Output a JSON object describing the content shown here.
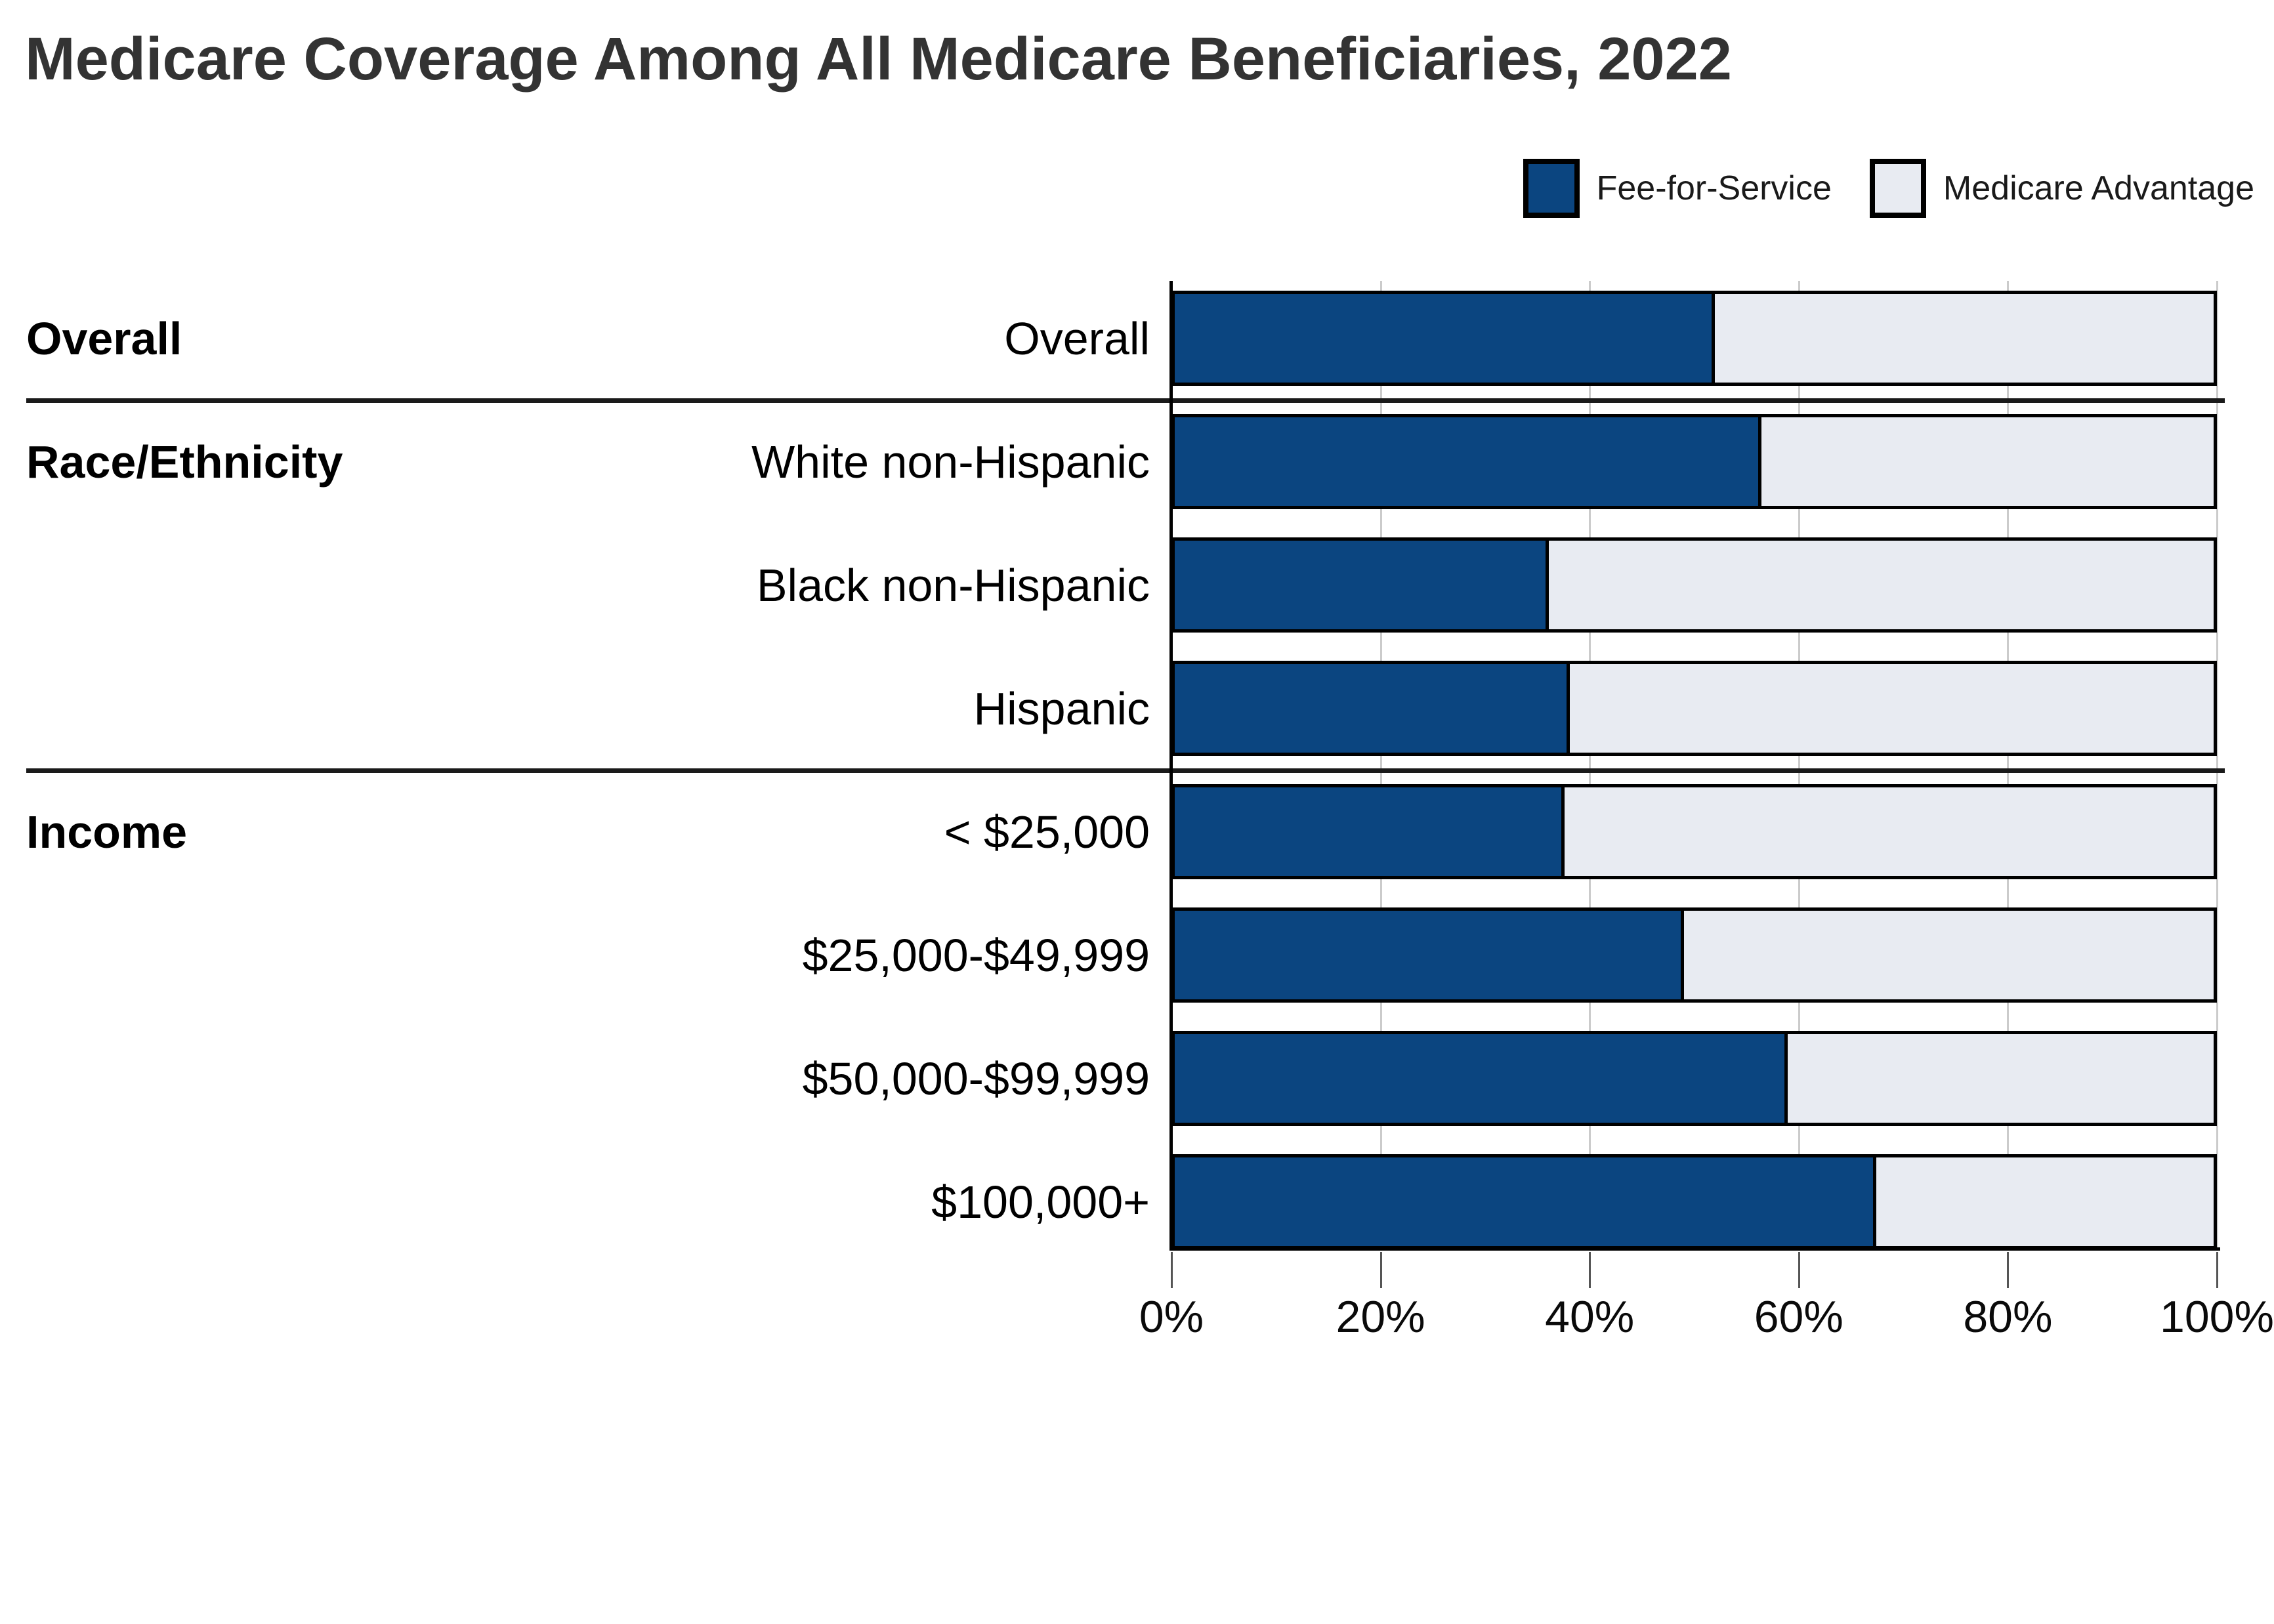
{
  "title": "Medicare Coverage Among All Medicare Beneficiaries, 2022",
  "legend": [
    {
      "label": "Fee-for-Service",
      "color": "#0B4580",
      "swatch": "dark-blue-square"
    },
    {
      "label": "Medicare Advantage",
      "color": "#E8EBF2",
      "swatch": "light-gray-square"
    }
  ],
  "colors": {
    "fee_for_service": "#0B4580",
    "medicare_advantage": "#E8EBF2",
    "bar_border": "#000000",
    "gridline": "#cbcbcb",
    "divider": "#1a1a1a",
    "title_text": "#333333",
    "label_text": "#000000"
  },
  "chart_data": {
    "type": "bar",
    "orientation": "horizontal",
    "stacked": true,
    "title": "Medicare Coverage Among All Medicare Beneficiaries, 2022",
    "xlabel": "",
    "ylabel": "",
    "value_unit": "percent",
    "xlim": [
      0,
      100
    ],
    "x_ticks": [
      0,
      20,
      40,
      60,
      80,
      100
    ],
    "x_tick_labels": [
      "0%",
      "20%",
      "40%",
      "60%",
      "80%",
      "100%"
    ],
    "grid": "vertical",
    "legend_position": "top-right",
    "series_names": [
      "Fee-for-Service",
      "Medicare Advantage"
    ],
    "categories": [
      "Overall",
      "White non-Hispanic",
      "Black non-Hispanic",
      "Hispanic",
      "< $25,000",
      "$25,000-$49,999",
      "$50,000-$99,999",
      "$100,000+"
    ],
    "series": [
      {
        "name": "Fee-for-Service",
        "color": "#0B4580",
        "values": [
          52,
          56.5,
          36,
          38,
          37.5,
          49,
          59,
          67.5
        ]
      },
      {
        "name": "Medicare Advantage",
        "color": "#E8EBF2",
        "values": [
          48,
          43.5,
          64,
          62,
          62.5,
          51,
          41,
          32.5
        ]
      }
    ],
    "groups": [
      {
        "label": "Overall",
        "rows": [
          {
            "category": "Overall",
            "fee_for_service": 52,
            "medicare_advantage": 48
          }
        ]
      },
      {
        "label": "Race/Ethnicity",
        "rows": [
          {
            "category": "White non-Hispanic",
            "fee_for_service": 56.5,
            "medicare_advantage": 43.5
          },
          {
            "category": "Black non-Hispanic",
            "fee_for_service": 36,
            "medicare_advantage": 64
          },
          {
            "category": "Hispanic",
            "fee_for_service": 38,
            "medicare_advantage": 62
          }
        ]
      },
      {
        "label": "Income",
        "rows": [
          {
            "category": "< $25,000",
            "fee_for_service": 37.5,
            "medicare_advantage": 62.5
          },
          {
            "category": "$25,000-$49,999",
            "fee_for_service": 49,
            "medicare_advantage": 51
          },
          {
            "category": "$50,000-$99,999",
            "fee_for_service": 59,
            "medicare_advantage": 41
          },
          {
            "category": "$100,000+",
            "fee_for_service": 67.5,
            "medicare_advantage": 32.5
          }
        ]
      }
    ]
  }
}
